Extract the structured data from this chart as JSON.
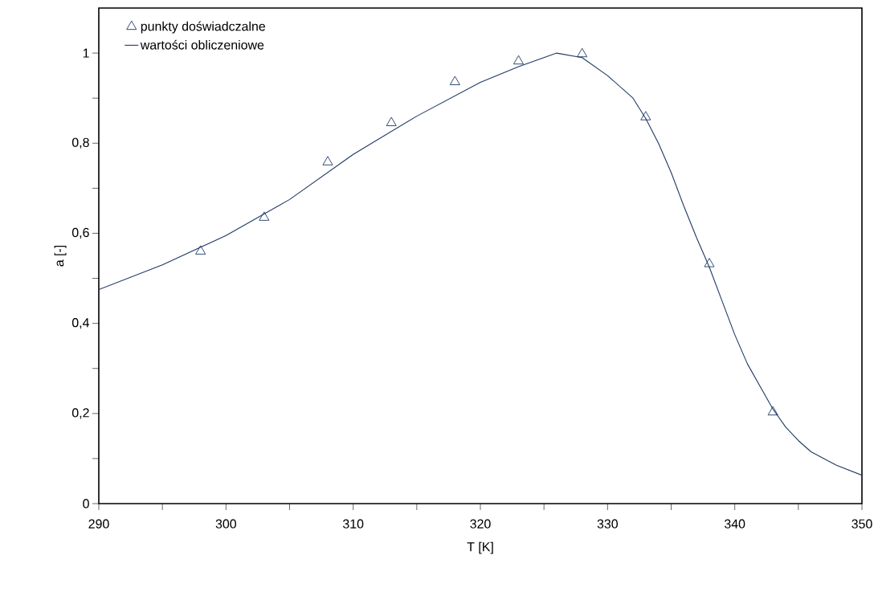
{
  "chart_data": {
    "type": "scatter",
    "xlabel": "T [K]",
    "ylabel": "a [-]",
    "xlim": [
      290,
      350
    ],
    "ylim": [
      0,
      1.1
    ],
    "xticks": [
      290,
      {
        "value": 295,
        "label": null
      },
      300,
      {
        "value": 305,
        "label": null
      },
      310,
      {
        "value": 315,
        "label": null
      },
      320,
      {
        "value": 325,
        "label": null
      },
      330,
      {
        "value": 335,
        "label": null
      },
      340,
      {
        "value": 345,
        "label": null
      },
      350
    ],
    "yticks": [
      0,
      {
        "value": 0.1,
        "label": null
      },
      {
        "value": 0.2,
        "label": "0,2"
      },
      {
        "value": 0.3,
        "label": null
      },
      {
        "value": 0.4,
        "label": "0,4"
      },
      {
        "value": 0.5,
        "label": null
      },
      {
        "value": 0.6,
        "label": "0,6"
      },
      {
        "value": 0.7,
        "label": null
      },
      {
        "value": 0.8,
        "label": "0,8"
      },
      {
        "value": 0.9,
        "label": null
      },
      1
    ],
    "grid": false,
    "legend": "top left",
    "series": [
      {
        "name": "punkty doświadczalne",
        "type": "scatter",
        "marker": "triangle",
        "color": "#1f3864",
        "x": [
          298,
          303,
          308,
          313,
          318,
          323,
          328,
          333,
          338,
          343
        ],
        "values": [
          0.56,
          0.635,
          0.758,
          0.845,
          0.936,
          0.982,
          0.998,
          0.858,
          0.532,
          0.203
        ]
      },
      {
        "name": "wartości obliczeniowe",
        "type": "line",
        "marker": "none",
        "line_style": "solid",
        "color": "#1f3864",
        "x": [
          290,
          295,
          300,
          305,
          310,
          315,
          320,
          323,
          326,
          328,
          330,
          332,
          333,
          334,
          335,
          336,
          337,
          338,
          339,
          340,
          341,
          342,
          343,
          344,
          345,
          346,
          348,
          350
        ],
        "values": [
          0.475,
          0.53,
          0.595,
          0.675,
          0.775,
          0.86,
          0.935,
          0.97,
          1.0,
          0.99,
          0.95,
          0.9,
          0.855,
          0.8,
          0.735,
          0.66,
          0.59,
          0.525,
          0.45,
          0.375,
          0.31,
          0.26,
          0.21,
          0.17,
          0.14,
          0.115,
          0.085,
          0.063
        ]
      }
    ]
  }
}
